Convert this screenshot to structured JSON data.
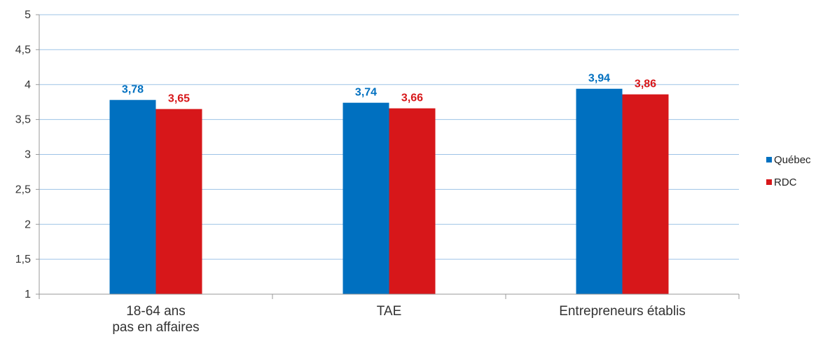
{
  "chart_data": {
    "type": "bar",
    "categories": [
      [
        "18-64 ans",
        "pas en affaires"
      ],
      [
        "TAE"
      ],
      [
        "Entrepreneurs établis"
      ]
    ],
    "series": [
      {
        "name": "Québec",
        "color": "#0070C0",
        "values": [
          3.78,
          3.74,
          3.94
        ]
      },
      {
        "name": "RDC",
        "color": "#D7171A",
        "values": [
          3.65,
          3.66,
          3.86
        ]
      }
    ],
    "value_labels": [
      [
        "3,78",
        "3,74",
        "3,94"
      ],
      [
        "3,65",
        "3,66",
        "3,86"
      ]
    ],
    "ylim": [
      1,
      5
    ],
    "yticks": [
      1,
      1.5,
      2,
      2.5,
      3,
      3.5,
      4,
      4.5,
      5
    ],
    "ytick_labels": [
      "1",
      "1,5",
      "2",
      "2,5",
      "3",
      "3,5",
      "4",
      "4,5",
      "5"
    ],
    "grid": true,
    "grid_color": "#9DC3E6",
    "legend_position": "right"
  }
}
